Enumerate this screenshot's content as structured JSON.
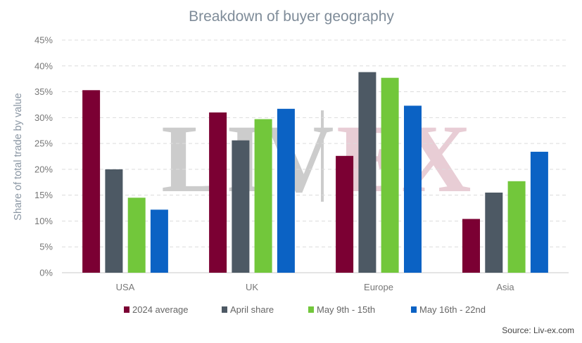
{
  "chart_data": {
    "type": "bar",
    "title": "Breakdown of buyer geography",
    "xlabel": "",
    "ylabel": "Share of total trade by value",
    "categories": [
      "USA",
      "UK",
      "Europe",
      "Asia"
    ],
    "series": [
      {
        "name": "2024 average",
        "color": "#7b0033",
        "values": [
          35.3,
          31.0,
          22.6,
          10.4
        ]
      },
      {
        "name": "April share",
        "color": "#4d5964",
        "values": [
          20.0,
          25.6,
          38.8,
          15.5
        ]
      },
      {
        "name": "May 9th - 15th",
        "color": "#72c73b",
        "values": [
          14.5,
          29.7,
          37.7,
          17.7
        ]
      },
      {
        "name": "May 16th - 22nd",
        "color": "#0b62c4",
        "values": [
          12.2,
          31.7,
          32.3,
          23.4
        ]
      }
    ],
    "ylim": [
      0,
      45
    ],
    "yticks": [
      0,
      5,
      10,
      15,
      20,
      25,
      30,
      35,
      40,
      45
    ],
    "ytick_labels": [
      "0%",
      "5%",
      "10%",
      "15%",
      "20%",
      "25%",
      "30%",
      "35%",
      "40%",
      "45%"
    ],
    "grid": "horizontal-dashed",
    "legend_position": "bottom",
    "source": "Source: Liv-ex.com",
    "watermark": {
      "left": "LIV",
      "right": "EX",
      "left_color": "#cccccc",
      "right_color": "#e8cdd5",
      "divider_color": "#cccccc"
    }
  }
}
